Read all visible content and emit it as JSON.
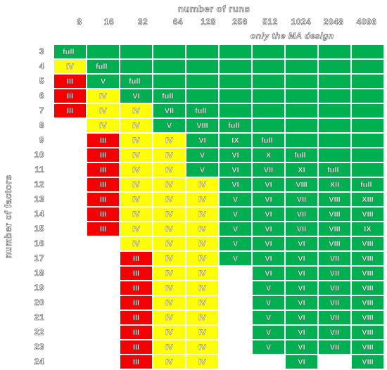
{
  "title_top": "number of runs",
  "title_left": "number of factors",
  "note": "only the MA design",
  "colors": {
    "red": "#f50000",
    "yellow": "#ffff00",
    "green": "#00b050"
  },
  "runs": [
    "8",
    "16",
    "32",
    "64",
    "128",
    "256",
    "512",
    "1024",
    "2048",
    "4096"
  ],
  "factors": [
    "3",
    "4",
    "5",
    "6",
    "7",
    "8",
    "9",
    "10",
    "11",
    "12",
    "13",
    "14",
    "15",
    "16",
    "17",
    "18",
    "19",
    "20",
    "21",
    "22",
    "23",
    "24"
  ],
  "cells": [
    [
      {
        "t": "full",
        "c": "green"
      },
      {
        "t": "",
        "c": "green"
      },
      {
        "t": "",
        "c": "green"
      },
      {
        "t": "",
        "c": "green"
      },
      {
        "t": "",
        "c": "green"
      },
      {
        "t": "",
        "c": "green"
      },
      {
        "t": "",
        "c": "green"
      },
      {
        "t": "",
        "c": "green"
      },
      {
        "t": "",
        "c": "green"
      },
      {
        "t": "",
        "c": "green"
      }
    ],
    [
      {
        "t": "IV",
        "c": "yellow"
      },
      {
        "t": "full",
        "c": "green"
      },
      {
        "t": "",
        "c": "green"
      },
      {
        "t": "",
        "c": "green"
      },
      {
        "t": "",
        "c": "green"
      },
      {
        "t": "",
        "c": "green"
      },
      {
        "t": "",
        "c": "green"
      },
      {
        "t": "",
        "c": "green"
      },
      {
        "t": "",
        "c": "green"
      },
      {
        "t": "",
        "c": "green"
      }
    ],
    [
      {
        "t": "III",
        "c": "red"
      },
      {
        "t": "V",
        "c": "green"
      },
      {
        "t": "full",
        "c": "green"
      },
      {
        "t": "",
        "c": "green"
      },
      {
        "t": "",
        "c": "green"
      },
      {
        "t": "",
        "c": "green"
      },
      {
        "t": "",
        "c": "green"
      },
      {
        "t": "",
        "c": "green"
      },
      {
        "t": "",
        "c": "green"
      },
      {
        "t": "",
        "c": "green"
      }
    ],
    [
      {
        "t": "III",
        "c": "red"
      },
      {
        "t": "IV",
        "c": "yellow"
      },
      {
        "t": "VI",
        "c": "green"
      },
      {
        "t": "full",
        "c": "green"
      },
      {
        "t": "",
        "c": "green"
      },
      {
        "t": "",
        "c": "green"
      },
      {
        "t": "",
        "c": "green"
      },
      {
        "t": "",
        "c": "green"
      },
      {
        "t": "",
        "c": "green"
      },
      {
        "t": "",
        "c": "green"
      }
    ],
    [
      {
        "t": "III",
        "c": "red"
      },
      {
        "t": "IV",
        "c": "yellow"
      },
      {
        "t": "IV",
        "c": "yellow"
      },
      {
        "t": "VII",
        "c": "green"
      },
      {
        "t": "full",
        "c": "green"
      },
      {
        "t": "",
        "c": "green"
      },
      {
        "t": "",
        "c": "green"
      },
      {
        "t": "",
        "c": "green"
      },
      {
        "t": "",
        "c": "green"
      },
      {
        "t": "",
        "c": "green"
      }
    ],
    [
      null,
      {
        "t": "IV",
        "c": "yellow"
      },
      {
        "t": "IV",
        "c": "yellow"
      },
      {
        "t": "V",
        "c": "green"
      },
      {
        "t": "VIII",
        "c": "green"
      },
      {
        "t": "full",
        "c": "green"
      },
      {
        "t": "",
        "c": "green"
      },
      {
        "t": "",
        "c": "green"
      },
      {
        "t": "",
        "c": "green"
      },
      {
        "t": "",
        "c": "green"
      }
    ],
    [
      null,
      {
        "t": "III",
        "c": "red"
      },
      {
        "t": "IV",
        "c": "yellow"
      },
      {
        "t": "IV",
        "c": "yellow"
      },
      {
        "t": "VI",
        "c": "green"
      },
      {
        "t": "IX",
        "c": "green"
      },
      {
        "t": "full",
        "c": "green"
      },
      {
        "t": "",
        "c": "green"
      },
      {
        "t": "",
        "c": "green"
      },
      {
        "t": "",
        "c": "green"
      }
    ],
    [
      null,
      {
        "t": "III",
        "c": "red"
      },
      {
        "t": "IV",
        "c": "yellow"
      },
      {
        "t": "IV",
        "c": "yellow"
      },
      {
        "t": "V",
        "c": "green"
      },
      {
        "t": "VI",
        "c": "green"
      },
      {
        "t": "X",
        "c": "green"
      },
      {
        "t": "full",
        "c": "green"
      },
      {
        "t": "",
        "c": "green"
      },
      {
        "t": "",
        "c": "green"
      }
    ],
    [
      null,
      {
        "t": "III",
        "c": "red"
      },
      {
        "t": "IV",
        "c": "yellow"
      },
      {
        "t": "IV",
        "c": "yellow"
      },
      {
        "t": "V",
        "c": "green"
      },
      {
        "t": "VI",
        "c": "green"
      },
      {
        "t": "VII",
        "c": "green"
      },
      {
        "t": "XI",
        "c": "green"
      },
      {
        "t": "full",
        "c": "green"
      },
      {
        "t": "",
        "c": "green"
      }
    ],
    [
      null,
      {
        "t": "III",
        "c": "red"
      },
      {
        "t": "IV",
        "c": "yellow"
      },
      {
        "t": "IV",
        "c": "yellow"
      },
      {
        "t": "IV",
        "c": "yellow"
      },
      {
        "t": "VI",
        "c": "green"
      },
      {
        "t": "VI",
        "c": "green"
      },
      {
        "t": "VIII",
        "c": "green"
      },
      {
        "t": "XII",
        "c": "green"
      },
      {
        "t": "full",
        "c": "green"
      }
    ],
    [
      null,
      {
        "t": "III",
        "c": "red"
      },
      {
        "t": "IV",
        "c": "yellow"
      },
      {
        "t": "IV",
        "c": "yellow"
      },
      {
        "t": "IV",
        "c": "yellow"
      },
      {
        "t": "V",
        "c": "green"
      },
      {
        "t": "VI",
        "c": "green"
      },
      {
        "t": "VII",
        "c": "green"
      },
      {
        "t": "VIII",
        "c": "green"
      },
      {
        "t": "XIII",
        "c": "green"
      }
    ],
    [
      null,
      {
        "t": "III",
        "c": "red"
      },
      {
        "t": "IV",
        "c": "yellow"
      },
      {
        "t": "IV",
        "c": "yellow"
      },
      {
        "t": "IV",
        "c": "yellow"
      },
      {
        "t": "V",
        "c": "green"
      },
      {
        "t": "VI",
        "c": "green"
      },
      {
        "t": "VII",
        "c": "green"
      },
      {
        "t": "VIII",
        "c": "green"
      },
      {
        "t": "VIII",
        "c": "green"
      }
    ],
    [
      null,
      {
        "t": "III",
        "c": "red"
      },
      {
        "t": "IV",
        "c": "yellow"
      },
      {
        "t": "IV",
        "c": "yellow"
      },
      {
        "t": "IV",
        "c": "yellow"
      },
      {
        "t": "V",
        "c": "green"
      },
      {
        "t": "VI",
        "c": "green"
      },
      {
        "t": "VII",
        "c": "green"
      },
      {
        "t": "VIII",
        "c": "green"
      },
      {
        "t": "IX",
        "c": "green"
      }
    ],
    [
      null,
      null,
      {
        "t": "IV",
        "c": "yellow"
      },
      {
        "t": "IV",
        "c": "yellow"
      },
      {
        "t": "IV",
        "c": "yellow"
      },
      {
        "t": "V",
        "c": "green"
      },
      {
        "t": "VI",
        "c": "green"
      },
      {
        "t": "VI",
        "c": "green"
      },
      {
        "t": "VIII",
        "c": "green"
      },
      {
        "t": "VIII",
        "c": "green"
      }
    ],
    [
      null,
      null,
      {
        "t": "III",
        "c": "red"
      },
      {
        "t": "IV",
        "c": "yellow"
      },
      {
        "t": "IV",
        "c": "yellow"
      },
      {
        "t": "V",
        "c": "green"
      },
      {
        "t": "VI",
        "c": "green"
      },
      {
        "t": "VI",
        "c": "green"
      },
      {
        "t": "VII",
        "c": "green"
      },
      {
        "t": "VIII",
        "c": "green"
      }
    ],
    [
      null,
      null,
      {
        "t": "III",
        "c": "red"
      },
      {
        "t": "IV",
        "c": "yellow"
      },
      {
        "t": "IV",
        "c": "yellow"
      },
      null,
      {
        "t": "VI",
        "c": "green"
      },
      {
        "t": "VI",
        "c": "green"
      },
      {
        "t": "VII",
        "c": "green"
      },
      {
        "t": "VIII",
        "c": "green"
      }
    ],
    [
      null,
      null,
      {
        "t": "III",
        "c": "red"
      },
      {
        "t": "IV",
        "c": "yellow"
      },
      {
        "t": "IV",
        "c": "yellow"
      },
      null,
      {
        "t": "V",
        "c": "green"
      },
      {
        "t": "VI",
        "c": "green"
      },
      {
        "t": "VII",
        "c": "green"
      },
      {
        "t": "VIII",
        "c": "green"
      }
    ],
    [
      null,
      null,
      {
        "t": "III",
        "c": "red"
      },
      {
        "t": "IV",
        "c": "yellow"
      },
      {
        "t": "IV",
        "c": "yellow"
      },
      null,
      {
        "t": "V",
        "c": "green"
      },
      {
        "t": "VI",
        "c": "green"
      },
      {
        "t": "VII",
        "c": "green"
      },
      {
        "t": "VIII",
        "c": "green"
      }
    ],
    [
      null,
      null,
      {
        "t": "III",
        "c": "red"
      },
      {
        "t": "IV",
        "c": "yellow"
      },
      {
        "t": "IV",
        "c": "yellow"
      },
      null,
      {
        "t": "V",
        "c": "green"
      },
      {
        "t": "VI",
        "c": "green"
      },
      {
        "t": "VII",
        "c": "green"
      },
      {
        "t": "VIII",
        "c": "green"
      }
    ],
    [
      null,
      null,
      {
        "t": "III",
        "c": "red"
      },
      {
        "t": "IV",
        "c": "yellow"
      },
      {
        "t": "IV",
        "c": "yellow"
      },
      null,
      {
        "t": "V",
        "c": "green"
      },
      {
        "t": "VI",
        "c": "green"
      },
      {
        "t": "VII",
        "c": "green"
      },
      {
        "t": "VIII",
        "c": "green"
      }
    ],
    [
      null,
      null,
      {
        "t": "III",
        "c": "red"
      },
      {
        "t": "IV",
        "c": "yellow"
      },
      {
        "t": "IV",
        "c": "yellow"
      },
      null,
      {
        "t": "V",
        "c": "green"
      },
      {
        "t": "VI",
        "c": "green"
      },
      {
        "t": "VII",
        "c": "green"
      },
      {
        "t": "VIII",
        "c": "green"
      }
    ],
    [
      null,
      null,
      {
        "t": "III",
        "c": "red"
      },
      {
        "t": "IV",
        "c": "yellow"
      },
      {
        "t": "IV",
        "c": "yellow"
      },
      null,
      null,
      {
        "t": "VI",
        "c": "green"
      },
      null,
      {
        "t": "VIII",
        "c": "green"
      }
    ]
  ]
}
